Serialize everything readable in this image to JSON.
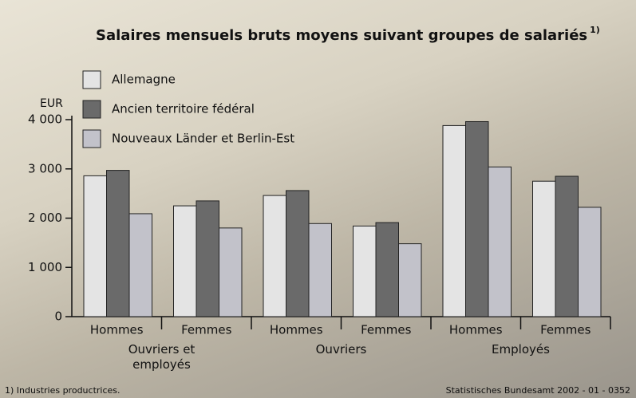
{
  "chart_data": {
    "type": "bar",
    "title": "Salaires mensuels bruts moyens suivant groupes de salariés",
    "title_note": "1)",
    "y_unit": "EUR",
    "categories": [
      "Hommes",
      "Femmes",
      "Hommes",
      "Femmes",
      "Hommes",
      "Femmes"
    ],
    "groups": [
      "Ouvriers et employés",
      "Ouvriers",
      "Employés"
    ],
    "series": [
      {
        "name": "Allemagne",
        "color": "#e4e4e4",
        "values": [
          2860,
          2250,
          2460,
          1840,
          3880,
          2750
        ]
      },
      {
        "name": "Ancien territoire fédéral",
        "color": "#6a6a6a",
        "values": [
          2970,
          2350,
          2560,
          1910,
          3960,
          2850
        ]
      },
      {
        "name": "Nouveaux Länder et Berlin-Est",
        "color": "#c2c2ca",
        "values": [
          2090,
          1800,
          1890,
          1480,
          3040,
          2220
        ]
      }
    ],
    "ylim": [
      0,
      4000
    ],
    "yticks": [
      0,
      {
        "value": 1000,
        "label": "1 000"
      },
      {
        "value": 2000,
        "label": "2 000"
      },
      {
        "value": 3000,
        "label": "3 000"
      },
      {
        "value": 4000,
        "label": "4 000"
      }
    ],
    "footnote": "1) Industries productrices.",
    "source": "Statistisches Bundesamt 2002 - 01 - 0352"
  }
}
